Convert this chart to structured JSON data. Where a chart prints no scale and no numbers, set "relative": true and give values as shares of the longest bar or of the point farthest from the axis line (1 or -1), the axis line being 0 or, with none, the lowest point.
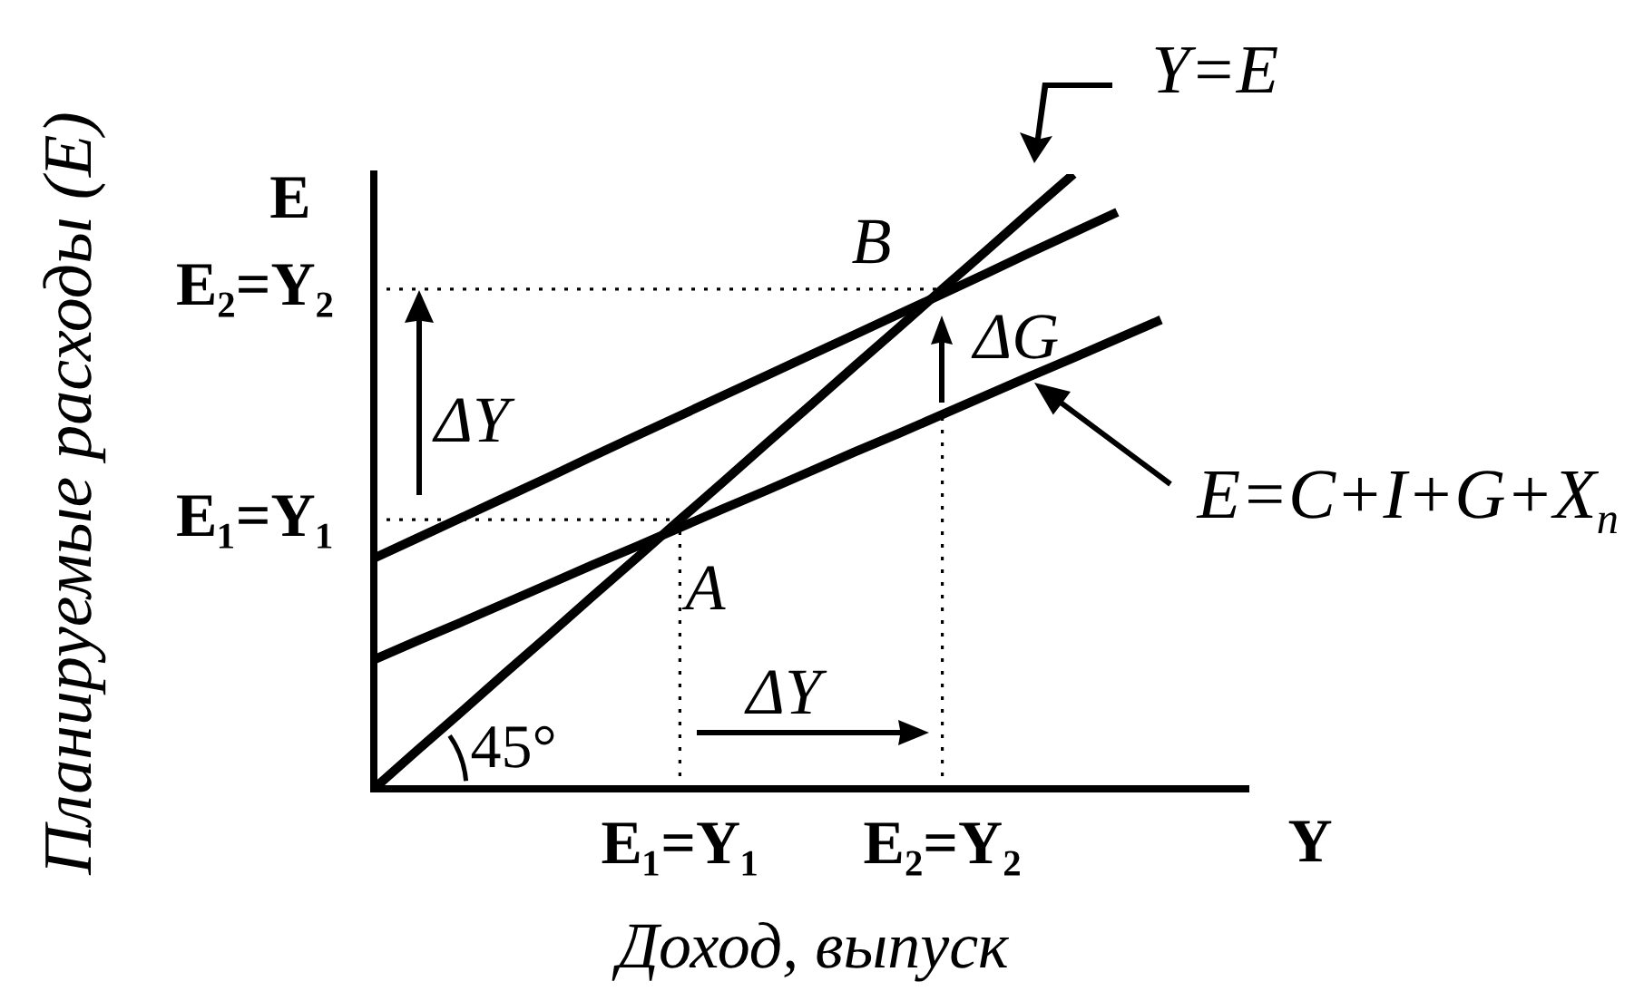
{
  "chart_data": {
    "type": "line",
    "relative": true,
    "xlabel": "Доход, выпуск",
    "ylabel": "Планируемые расходы (E)",
    "tick_labels": "x",
    "legend": false,
    "grid": false,
    "marker": "none",
    "line_style": "solid",
    "categories": [
      null,
      null,
      null,
      null,
      null,
      null,
      null,
      "E₁=Y₁",
      null,
      null,
      null,
      null,
      null,
      "E₂=Y₂",
      null,
      null,
      null,
      null,
      null,
      null,
      null
    ],
    "series": [
      {
        "name": "Y=E",
        "color": "#000000",
        "values": [
          0,
          0.063,
          0.125,
          0.188,
          0.25,
          0.313,
          0.375,
          0.438,
          0.5,
          0.563,
          0.625,
          0.688,
          0.75,
          0.813,
          0.875,
          0.938,
          1,
          null,
          null,
          null,
          null
        ]
      },
      {
        "name": "E=C+I+G+X$_{n}$",
        "color": "#000000",
        "values": [
          0.21,
          0.241,
          0.271,
          0.302,
          0.333,
          0.364,
          0.394,
          0.425,
          0.456,
          0.486,
          0.517,
          0.548,
          0.578,
          0.609,
          0.64,
          0.671,
          0.701,
          0.732,
          0.763,
          null,
          null
        ]
      },
      {
        "color": "#000000",
        "values": [
          0.375,
          0.408,
          0.441,
          0.474,
          0.507,
          0.541,
          0.574,
          0.607,
          0.64,
          0.673,
          0.706,
          0.739,
          0.772,
          0.805,
          0.838,
          0.872,
          0.905,
          0.938,
          null,
          null,
          null
        ]
      }
    ],
    "ref_lines": [
      {
        "axis": "y",
        "value": 0.438,
        "label": "E₁=Y₁",
        "line_style": "dotted"
      },
      {
        "axis": "y",
        "value": 0.813,
        "label": "E₂=Y₂",
        "line_style": "dotted"
      },
      {
        "axis": "x",
        "value": "E₁=Y₁",
        "line_style": "dotted"
      },
      {
        "axis": "x",
        "value": "E₂=Y₂",
        "line_style": "dotted"
      }
    ],
    "annotations": [
      "E",
      "Y",
      {
        "text": "A",
        "x": "E₁=Y₁",
        "y": 0.438
      },
      {
        "text": "B",
        "x": "E₂=Y₂",
        "y": 0.813
      },
      "ΔG",
      "ΔY",
      "ΔY",
      "45°"
    ]
  }
}
